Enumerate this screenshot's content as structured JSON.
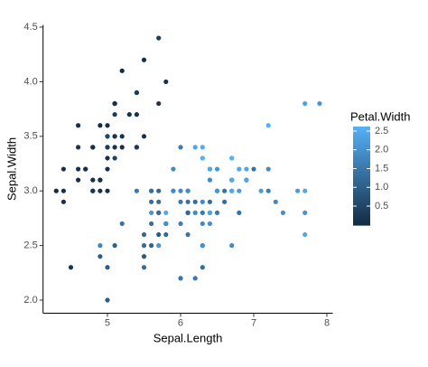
{
  "chart_data": {
    "type": "scatter",
    "x_label": "Sepal.Length",
    "y_label": "Sepal.Width",
    "x": [
      5.1,
      4.9,
      4.7,
      4.6,
      5.0,
      5.4,
      4.6,
      5.0,
      4.4,
      4.9,
      5.4,
      4.8,
      4.8,
      4.3,
      5.8,
      5.7,
      5.4,
      5.1,
      5.7,
      5.1,
      5.4,
      5.1,
      4.6,
      5.1,
      4.8,
      5.0,
      5.0,
      5.2,
      5.2,
      4.7,
      4.8,
      5.4,
      5.2,
      5.5,
      4.9,
      5.0,
      5.5,
      4.9,
      4.4,
      5.1,
      5.0,
      4.5,
      4.4,
      5.0,
      5.1,
      4.8,
      5.1,
      4.6,
      5.3,
      5.0,
      7.0,
      6.4,
      6.9,
      5.5,
      6.5,
      5.7,
      6.3,
      4.9,
      6.6,
      5.2,
      5.0,
      5.9,
      6.0,
      6.1,
      5.6,
      6.7,
      5.6,
      5.8,
      6.2,
      5.6,
      5.9,
      6.1,
      6.3,
      6.1,
      6.4,
      6.6,
      6.8,
      6.7,
      6.0,
      5.7,
      5.5,
      5.5,
      5.8,
      6.0,
      5.4,
      6.0,
      6.7,
      6.3,
      5.6,
      5.5,
      5.5,
      6.1,
      5.8,
      5.0,
      5.6,
      5.7,
      5.7,
      6.2,
      5.1,
      5.7,
      6.3,
      5.8,
      7.1,
      6.3,
      6.5,
      7.6,
      4.9,
      7.3,
      6.7,
      7.2,
      6.5,
      6.4,
      6.8,
      5.7,
      5.8,
      6.4,
      6.5,
      7.7,
      7.7,
      6.0,
      6.9,
      5.6,
      7.7,
      6.3,
      6.7,
      7.2,
      6.2,
      6.1,
      6.4,
      7.2,
      7.4,
      7.9,
      6.4,
      6.3,
      6.1,
      7.7,
      6.3,
      6.4,
      6.0,
      6.9,
      6.7,
      6.9,
      5.8,
      6.8,
      6.7,
      6.7,
      6.3,
      6.5,
      6.2,
      5.9
    ],
    "values": [
      3.5,
      3.0,
      3.2,
      3.1,
      3.6,
      3.9,
      3.4,
      3.4,
      2.9,
      3.1,
      3.7,
      3.4,
      3.0,
      3.0,
      4.0,
      4.4,
      3.9,
      3.5,
      3.8,
      3.8,
      3.4,
      3.7,
      3.6,
      3.3,
      3.4,
      3.0,
      3.4,
      3.5,
      3.4,
      3.2,
      3.1,
      3.4,
      4.1,
      4.2,
      3.1,
      3.2,
      3.5,
      3.6,
      3.0,
      3.4,
      3.5,
      2.3,
      3.2,
      3.5,
      3.8,
      3.0,
      3.8,
      3.2,
      3.7,
      3.3,
      3.2,
      3.2,
      3.1,
      2.3,
      2.8,
      2.8,
      3.3,
      2.4,
      2.9,
      2.7,
      2.0,
      3.0,
      2.2,
      2.9,
      2.9,
      3.1,
      3.0,
      2.7,
      2.2,
      2.5,
      3.2,
      2.8,
      2.5,
      2.8,
      2.9,
      3.0,
      2.8,
      3.0,
      2.9,
      2.6,
      2.4,
      2.4,
      2.7,
      2.7,
      3.0,
      3.4,
      3.1,
      2.3,
      3.0,
      2.5,
      2.6,
      3.0,
      2.6,
      2.3,
      2.7,
      3.0,
      2.9,
      2.9,
      2.5,
      2.8,
      3.3,
      2.7,
      3.0,
      2.9,
      3.0,
      3.0,
      2.5,
      2.9,
      2.5,
      3.6,
      3.2,
      2.7,
      3.0,
      2.5,
      2.8,
      3.2,
      3.0,
      3.8,
      2.6,
      2.2,
      3.2,
      2.8,
      2.8,
      2.7,
      3.3,
      3.2,
      2.8,
      3.0,
      2.8,
      3.0,
      2.8,
      3.8,
      2.8,
      2.8,
      2.6,
      3.0,
      3.4,
      3.1,
      3.0,
      3.1,
      3.1,
      3.1,
      2.7,
      3.2,
      3.3,
      3.0,
      2.5,
      3.0,
      3.4,
      3.0
    ],
    "color_values": [
      0.2,
      0.2,
      0.2,
      0.2,
      0.2,
      0.4,
      0.3,
      0.2,
      0.2,
      0.1,
      0.2,
      0.2,
      0.1,
      0.1,
      0.2,
      0.4,
      0.4,
      0.3,
      0.3,
      0.3,
      0.2,
      0.4,
      0.2,
      0.5,
      0.2,
      0.2,
      0.4,
      0.2,
      0.2,
      0.2,
      0.2,
      0.4,
      0.1,
      0.2,
      0.2,
      0.2,
      0.2,
      0.1,
      0.2,
      0.2,
      0.3,
      0.3,
      0.2,
      0.6,
      0.4,
      0.3,
      0.2,
      0.2,
      0.2,
      0.2,
      1.4,
      1.5,
      1.5,
      1.3,
      1.5,
      1.3,
      1.6,
      1.0,
      1.3,
      1.4,
      1.0,
      1.5,
      1.0,
      1.4,
      1.3,
      1.4,
      1.5,
      1.0,
      1.5,
      1.1,
      1.8,
      1.3,
      1.5,
      1.2,
      1.3,
      1.4,
      1.4,
      1.7,
      1.5,
      1.0,
      1.1,
      1.0,
      1.2,
      1.6,
      1.5,
      1.6,
      1.5,
      1.3,
      1.3,
      1.3,
      1.2,
      1.4,
      1.2,
      1.0,
      1.3,
      1.2,
      1.3,
      1.3,
      1.1,
      1.3,
      2.5,
      1.9,
      2.1,
      1.8,
      2.2,
      2.1,
      1.7,
      1.8,
      1.8,
      2.5,
      2.0,
      1.9,
      2.1,
      2.0,
      2.4,
      2.3,
      1.8,
      2.2,
      2.3,
      1.5,
      2.3,
      2.0,
      2.0,
      1.8,
      2.1,
      1.8,
      1.8,
      1.8,
      2.1,
      1.6,
      1.9,
      2.0,
      2.2,
      1.5,
      1.4,
      2.3,
      2.4,
      1.8,
      1.8,
      2.1,
      2.4,
      2.3,
      1.9,
      2.3,
      2.5,
      2.3,
      1.9,
      2.0,
      2.3,
      1.8
    ],
    "xlim": [
      4.12,
      8.08
    ],
    "xticks": [
      5,
      6,
      7,
      8
    ],
    "ylim": [
      1.88,
      4.52
    ],
    "yticks": [
      {
        "value": 2,
        "label": "2.0"
      },
      2.5,
      {
        "value": 3,
        "label": "3.0"
      },
      3.5,
      {
        "value": 4,
        "label": "4.0"
      },
      4.5
    ],
    "color_scale": {
      "title": "Petal.Width",
      "low": "#132B43",
      "high": "#56B1F7",
      "lim": [
        0.1,
        2.5
      ],
      "ticks": [
        0.5,
        {
          "value": 1,
          "label": "1.0"
        },
        1.5,
        {
          "value": 2,
          "label": "2.0"
        },
        2.5
      ]
    }
  }
}
